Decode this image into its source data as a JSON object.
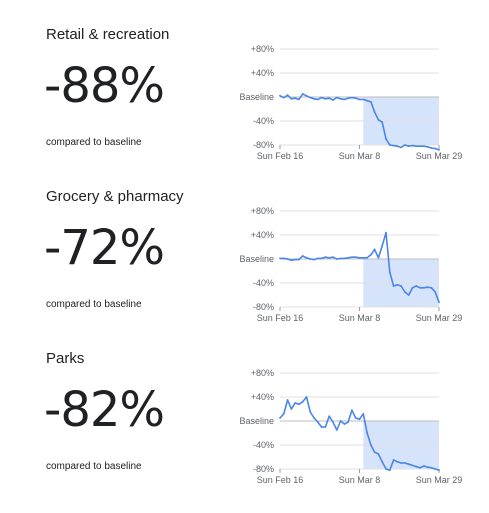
{
  "panels": [
    {
      "title": "Retail & recreation",
      "value": "-88%",
      "caption": "compared to baseline"
    },
    {
      "title": "Grocery & pharmacy",
      "value": "-72%",
      "caption": "compared to baseline"
    },
    {
      "title": "Parks",
      "value": "-82%",
      "caption": "compared to baseline"
    }
  ],
  "colors": {
    "line": "#4a86e8",
    "fill": "#d6e4fb",
    "grid": "#e0e0e0",
    "text": "#5f6368"
  },
  "chart_data": [
    {
      "type": "line",
      "title": "Retail & recreation",
      "ylim": [
        -80,
        80
      ],
      "yticks": [
        "+80%",
        "+40%",
        "Baseline",
        "-40%",
        "-80%"
      ],
      "ytick_values": [
        80,
        40,
        0,
        -40,
        -80
      ],
      "xticks": [
        "Sun Feb 16",
        "Sun Mar 8",
        "Sun Mar 29"
      ],
      "xtick_index": [
        0,
        21,
        42
      ],
      "values": [
        2,
        -1,
        3,
        -3,
        -2,
        -4,
        5,
        2,
        -1,
        -3,
        -4,
        -1,
        -3,
        -2,
        -5,
        -1,
        -3,
        -4,
        -2,
        -1,
        -2,
        -4,
        -4,
        -6,
        -8,
        -25,
        -38,
        -42,
        -70,
        -80,
        -81,
        -82,
        -84,
        -80,
        -82,
        -81,
        -82,
        -82,
        -82,
        -83,
        -85,
        -86,
        -88
      ]
    },
    {
      "type": "line",
      "title": "Grocery & pharmacy",
      "ylim": [
        -80,
        80
      ],
      "yticks": [
        "+80%",
        "+40%",
        "Baseline",
        "-40%",
        "-80%"
      ],
      "ytick_values": [
        80,
        40,
        0,
        -40,
        -80
      ],
      "xticks": [
        "Sun Feb 16",
        "Sun Mar 8",
        "Sun Mar 29"
      ],
      "xtick_index": [
        0,
        21,
        42
      ],
      "values": [
        1,
        1,
        0,
        -2,
        -1,
        -1,
        5,
        2,
        0,
        -1,
        1,
        1,
        3,
        2,
        3,
        0,
        1,
        1,
        2,
        3,
        3,
        2,
        2,
        2,
        7,
        16,
        2,
        22,
        44,
        -22,
        -45,
        -43,
        -45,
        -55,
        -60,
        -48,
        -45,
        -48,
        -48,
        -47,
        -48,
        -55,
        -72
      ]
    },
    {
      "type": "line",
      "title": "Parks",
      "ylim": [
        -80,
        80
      ],
      "yticks": [
        "+80%",
        "+40%",
        "Baseline",
        "-40%",
        "-80%"
      ],
      "ytick_values": [
        80,
        40,
        0,
        -40,
        -80
      ],
      "xticks": [
        "Sun Feb 16",
        "Sun Mar 8",
        "Sun Mar 29"
      ],
      "xtick_index": [
        0,
        21,
        42
      ],
      "values": [
        5,
        12,
        35,
        20,
        30,
        28,
        32,
        40,
        15,
        5,
        -2,
        -10,
        -10,
        8,
        -2,
        -15,
        0,
        -5,
        -2,
        18,
        5,
        3,
        12,
        -20,
        -40,
        -52,
        -55,
        -68,
        -80,
        -82,
        -65,
        -68,
        -70,
        -70,
        -72,
        -74,
        -76,
        -78,
        -75,
        -77,
        -78,
        -80,
        -82
      ]
    }
  ]
}
